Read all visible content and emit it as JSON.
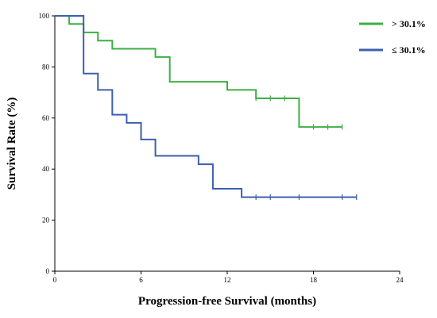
{
  "chart_data": {
    "type": "line",
    "subtype": "step",
    "title": "",
    "xlabel": "Progression-free Survival (months)",
    "ylabel": "Survival Rate (%)",
    "xlim": [
      0,
      24
    ],
    "ylim": [
      0,
      100
    ],
    "xticks": [
      0,
      6,
      12,
      18,
      24
    ],
    "yticks": [
      0,
      20,
      40,
      60,
      80,
      100
    ],
    "grid": false,
    "legend_position": "top-right",
    "series": [
      {
        "name": "> 30.1%",
        "color": "#3cb043",
        "steps": [
          [
            0,
            100
          ],
          [
            1,
            96.8
          ],
          [
            2,
            93.5
          ],
          [
            3,
            90.3
          ],
          [
            4,
            87.1
          ],
          [
            7,
            83.9
          ],
          [
            8,
            74.2
          ],
          [
            12,
            71.0
          ],
          [
            14,
            67.7
          ],
          [
            17,
            56.5
          ],
          [
            20,
            56.5
          ]
        ],
        "censored": [
          [
            14,
            67.7
          ],
          [
            15,
            67.7
          ],
          [
            16,
            67.7
          ],
          [
            18,
            56.5
          ],
          [
            19,
            56.5
          ],
          [
            20,
            56.5
          ]
        ]
      },
      {
        "name": "≤ 30.1%",
        "color": "#3c5fae",
        "steps": [
          [
            0,
            100
          ],
          [
            2,
            77.4
          ],
          [
            3,
            71.0
          ],
          [
            4,
            61.3
          ],
          [
            5,
            58.1
          ],
          [
            6,
            51.6
          ],
          [
            7,
            45.2
          ],
          [
            10,
            41.9
          ],
          [
            11,
            32.3
          ],
          [
            13,
            29.0
          ],
          [
            21,
            29.0
          ]
        ],
        "censored": [
          [
            14,
            29.0
          ],
          [
            15,
            29.0
          ],
          [
            17,
            29.0
          ],
          [
            20,
            29.0
          ],
          [
            21,
            29.0
          ]
        ]
      }
    ]
  }
}
